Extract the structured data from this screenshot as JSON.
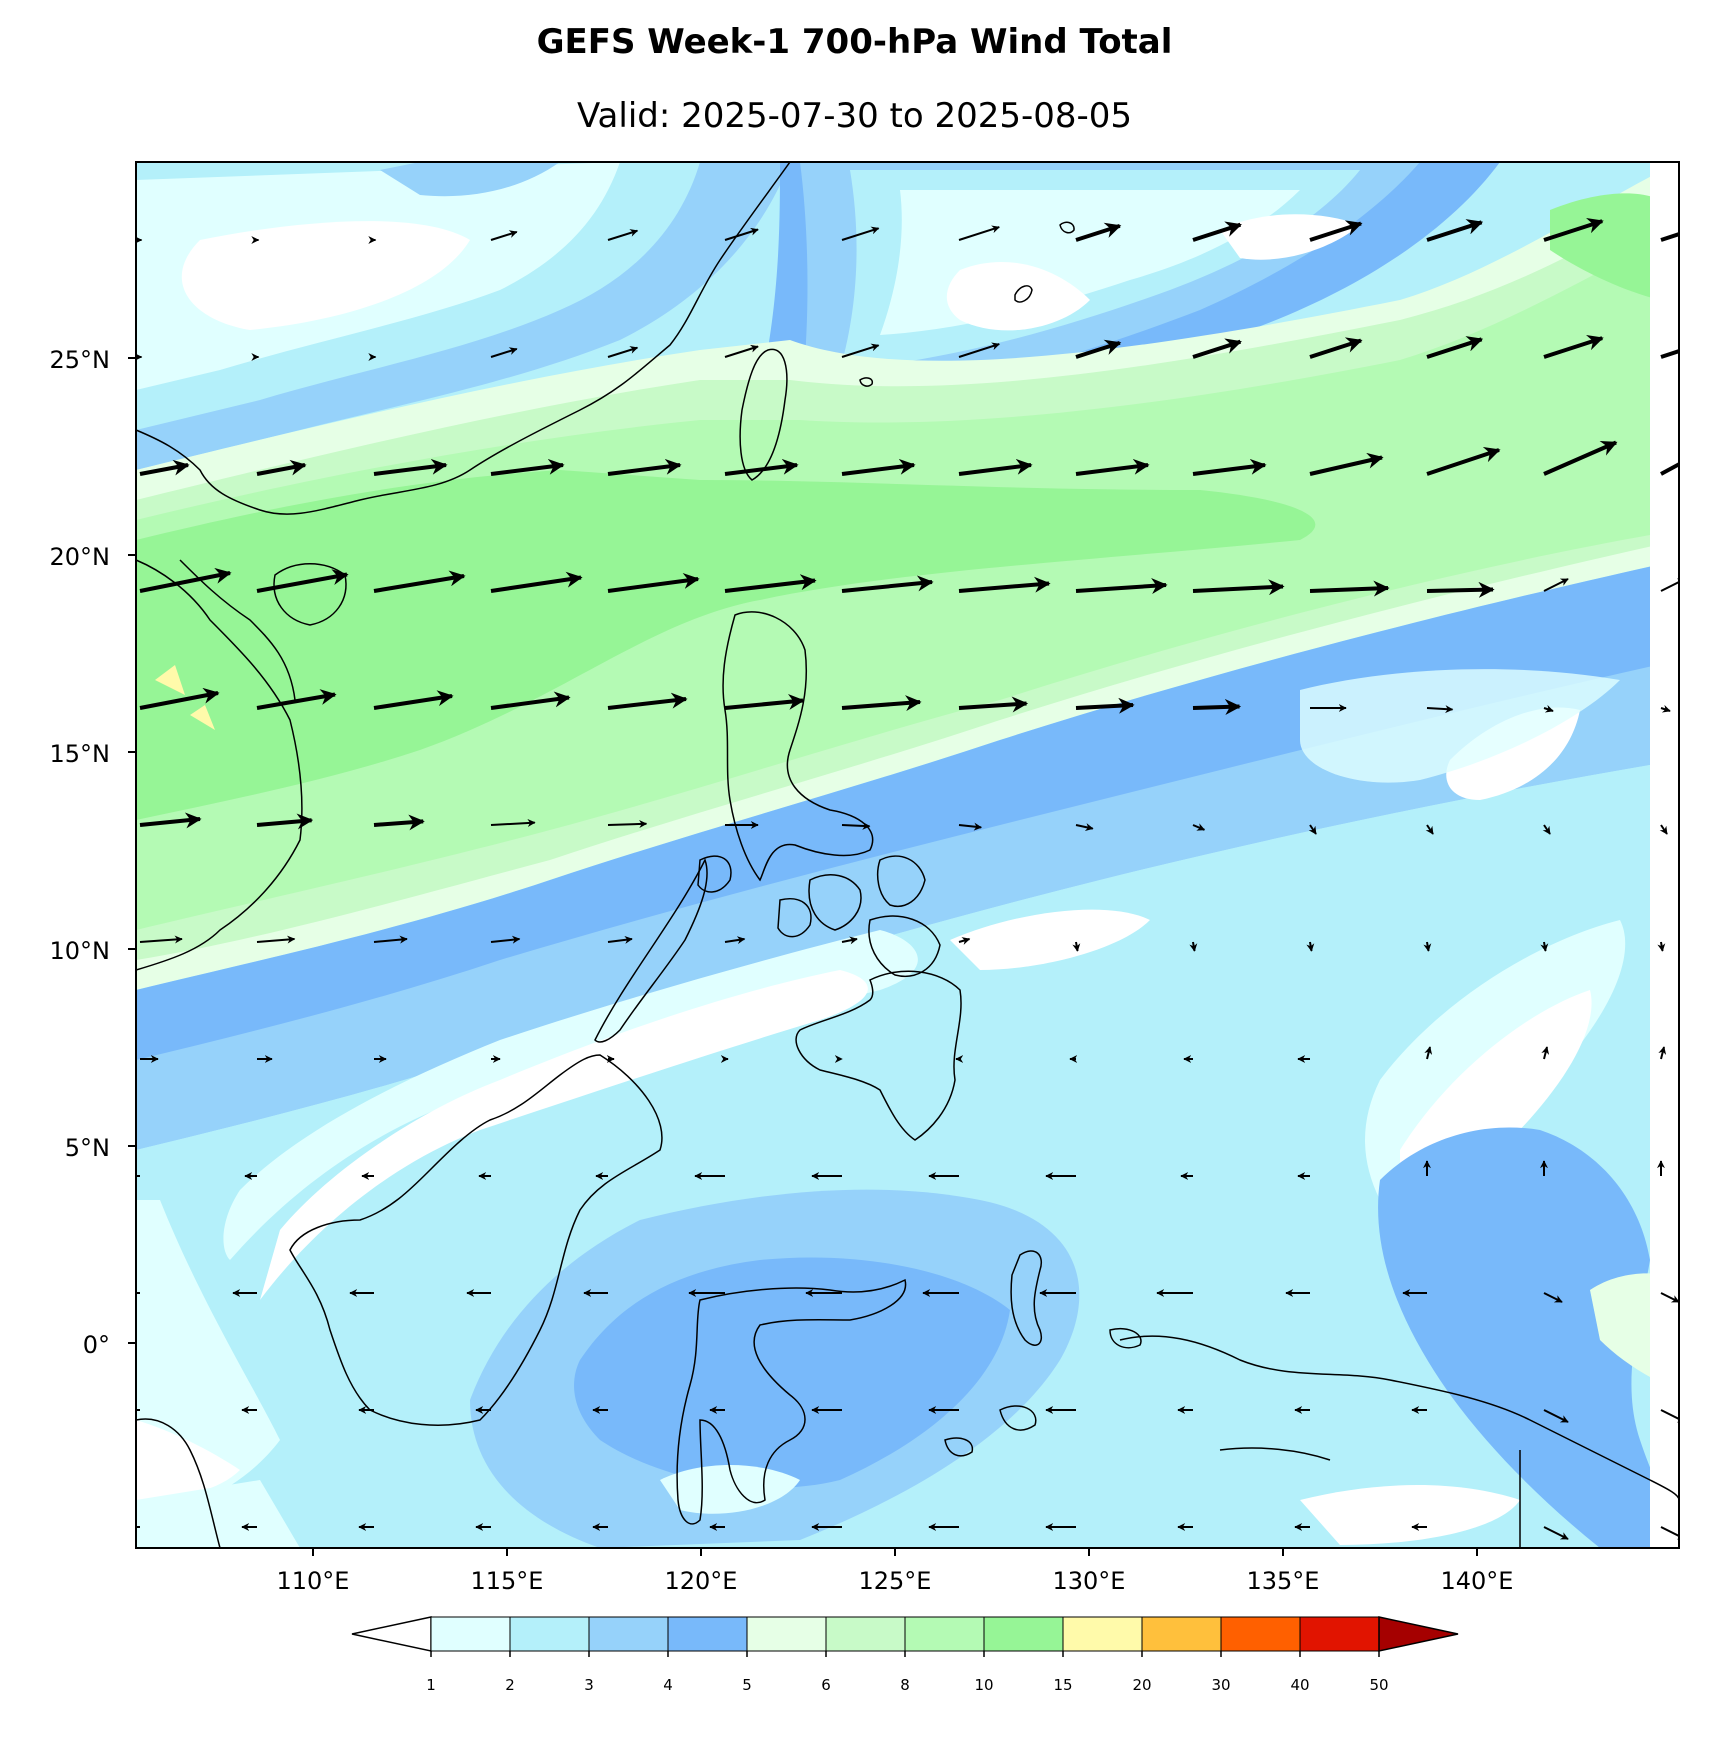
{
  "header": {
    "title": "GEFS Week-1 700-hPa Wind Total",
    "subtitle": "Valid: 2025-07-30 to 2025-08-05"
  },
  "axes": {
    "lat_labels": [
      "25°N",
      "20°N",
      "15°N",
      "10°N",
      "5°N",
      "0°"
    ],
    "lat_values": [
      25,
      20,
      15,
      10,
      5,
      0
    ],
    "lon_labels": [
      "110°E",
      "115°E",
      "120°E",
      "125°E",
      "130°E",
      "135°E",
      "140°E"
    ],
    "lon_values": [
      110,
      115,
      120,
      125,
      130,
      135,
      140
    ],
    "lon_range": [
      105.5,
      145
    ],
    "lat_range": [
      -5,
      30
    ]
  },
  "colorbar": {
    "labels": [
      "1",
      "2",
      "3",
      "4",
      "5",
      "6",
      "8",
      "10",
      "15",
      "20",
      "30",
      "40",
      "50"
    ],
    "colors": [
      "#e0ffff",
      "#b4f0fa",
      "#96d2fa",
      "#78b9fa",
      "#e6ffe6",
      "#c8fac8",
      "#b4fab4",
      "#96f596",
      "#fffaaa",
      "#ffc03c",
      "#ff6000",
      "#e11400",
      "#a50000"
    ],
    "under_color": "#ffffff"
  },
  "map": {
    "fill_colors": {
      "white": "#ffffff",
      "c1": "#e0ffff",
      "c2": "#b4f0fa",
      "c3": "#96d2fa",
      "c4": "#78b9fa",
      "c5": "#e6ffe6",
      "c6": "#c8fac8",
      "c8": "#b4fab4",
      "c10": "#96f596",
      "c15": "#fffaaa"
    },
    "wind_field_note": "700-hPa wind vectors"
  }
}
